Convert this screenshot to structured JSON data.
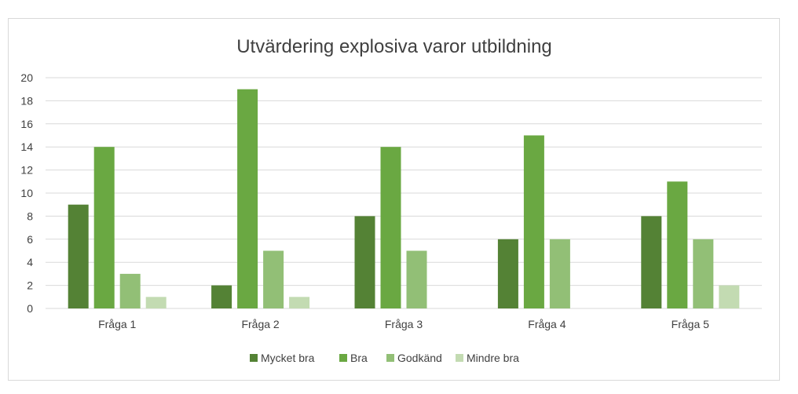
{
  "chart_data": {
    "type": "bar",
    "title": "Utvärdering explosiva varor utbildning",
    "categories": [
      "Fråga 1",
      "Fråga 2",
      "Fråga 3",
      "Fråga 4",
      "Fråga 5"
    ],
    "series": [
      {
        "name": "Mycket bra",
        "color": "#548235",
        "values": [
          9,
          2,
          8,
          6,
          8
        ]
      },
      {
        "name": "Bra",
        "color": "#6aa842",
        "values": [
          14,
          19,
          14,
          15,
          11
        ]
      },
      {
        "name": "Godkänd",
        "color": "#92bf76",
        "values": [
          3,
          5,
          5,
          6,
          6
        ]
      },
      {
        "name": "Mindre bra",
        "color": "#c3dbb2",
        "values": [
          1,
          1,
          0,
          0,
          2
        ]
      }
    ],
    "ylim": [
      0,
      20
    ],
    "yticks": [
      0,
      2,
      4,
      6,
      8,
      10,
      12,
      14,
      16,
      18,
      20
    ],
    "grid": true,
    "legend_position": "bottom",
    "gridline_color": "#d9d9d9"
  }
}
